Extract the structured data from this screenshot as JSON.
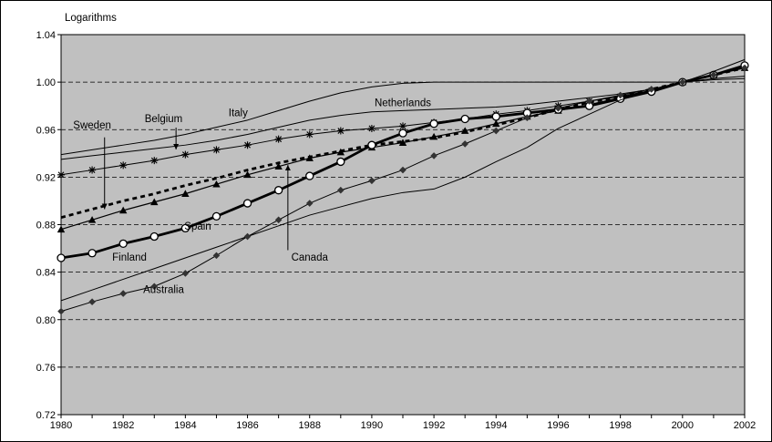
{
  "chart_data": {
    "type": "line",
    "ylabel": "Logarithms",
    "xlim": [
      1980,
      2002
    ],
    "ylim": [
      0.72,
      1.04
    ],
    "x_ticks": [
      "1980",
      "1982",
      "1984",
      "1986",
      "1988",
      "1990",
      "1992",
      "1994",
      "1996",
      "1998",
      "2000",
      "2002"
    ],
    "y_ticks": [
      "0.72",
      "0.76",
      "0.80",
      "0.84",
      "0.88",
      "0.92",
      "0.96",
      "1.00",
      "1.04"
    ],
    "grid": "horizontal-dashed",
    "plot_background": "#c0c0c0",
    "x": [
      1980,
      1981,
      1982,
      1983,
      1984,
      1985,
      1986,
      1987,
      1988,
      1989,
      1990,
      1991,
      1992,
      1993,
      1994,
      1995,
      1996,
      1997,
      1998,
      1999,
      2000,
      2001,
      2002
    ],
    "series": [
      {
        "name": "Italy",
        "style": "thin",
        "color": "#000000",
        "values": [
          0.939,
          0.943,
          0.947,
          0.951,
          0.956,
          0.962,
          0.968,
          0.976,
          0.984,
          0.991,
          0.996,
          0.999,
          1.0,
          1.0,
          1.0,
          1.0,
          1.0,
          1.0,
          1.0,
          1.0,
          1.0,
          1.002,
          1.003
        ]
      },
      {
        "name": "Netherlands",
        "style": "thin",
        "color": "#000000",
        "values": [
          0.935,
          0.938,
          0.941,
          0.944,
          0.947,
          0.951,
          0.956,
          0.962,
          0.968,
          0.972,
          0.975,
          0.976,
          0.977,
          0.978,
          0.979,
          0.981,
          0.984,
          0.987,
          0.99,
          0.994,
          1.0,
          1.003,
          1.005
        ]
      },
      {
        "name": "Belgium",
        "style": "asterisk",
        "color": "#000000",
        "values": [
          0.922,
          0.926,
          0.93,
          0.934,
          0.939,
          0.943,
          0.947,
          0.952,
          0.956,
          0.959,
          0.961,
          0.963,
          0.966,
          0.969,
          0.973,
          0.976,
          0.98,
          0.984,
          0.988,
          0.993,
          1.0,
          1.006,
          1.013
        ]
      },
      {
        "name": "Sweden",
        "style": "dashed",
        "color": "#000000",
        "values": [
          0.886,
          0.893,
          0.9,
          0.906,
          0.913,
          0.919,
          0.926,
          0.932,
          0.937,
          0.942,
          0.947,
          0.95,
          0.953,
          0.958,
          0.964,
          0.97,
          0.977,
          0.983,
          0.988,
          0.994,
          1.0,
          1.006,
          1.012
        ]
      },
      {
        "name": "Spain",
        "style": "triangle",
        "color": "#000000",
        "values": [
          0.876,
          0.884,
          0.892,
          0.899,
          0.906,
          0.914,
          0.922,
          0.929,
          0.936,
          0.941,
          0.945,
          0.949,
          0.954,
          0.959,
          0.965,
          0.971,
          0.976,
          0.981,
          0.987,
          0.993,
          1.0,
          1.006,
          1.012
        ]
      },
      {
        "name": "Canada",
        "style": "bold-circle",
        "color": "#000000",
        "values": [
          0.852,
          0.856,
          0.864,
          0.87,
          0.877,
          0.887,
          0.898,
          0.909,
          0.921,
          0.933,
          0.947,
          0.957,
          0.965,
          0.969,
          0.971,
          0.974,
          0.977,
          0.98,
          0.986,
          0.992,
          1.0,
          1.006,
          1.014
        ]
      },
      {
        "name": "Finland",
        "style": "thin",
        "color": "#000000",
        "values": [
          0.816,
          0.825,
          0.834,
          0.843,
          0.852,
          0.861,
          0.87,
          0.879,
          0.888,
          0.895,
          0.902,
          0.907,
          0.91,
          0.92,
          0.933,
          0.945,
          0.961,
          0.973,
          0.985,
          0.993,
          1.0,
          1.009,
          1.019
        ]
      },
      {
        "name": "Australia",
        "style": "diamond",
        "color": "#000000",
        "values": [
          0.807,
          0.815,
          0.822,
          0.828,
          0.839,
          0.854,
          0.87,
          0.884,
          0.898,
          0.909,
          0.917,
          0.926,
          0.938,
          0.948,
          0.959,
          0.97,
          0.978,
          0.984,
          0.989,
          0.994,
          1.0,
          1.006,
          1.012
        ]
      }
    ],
    "annotations": [
      {
        "text": "Italy",
        "x": 1985.7,
        "y": 0.9715
      },
      {
        "text": "Netherlands",
        "x": 1991.0,
        "y": 0.9797
      },
      {
        "text": "Belgium",
        "x": 1983.3,
        "y": 0.9663
      },
      {
        "text": "Sweden",
        "x": 1981.0,
        "y": 0.9608
      },
      {
        "text": "Spain",
        "x": 1984.4,
        "y": 0.8757
      },
      {
        "text": "Finland",
        "x": 1982.2,
        "y": 0.8497
      },
      {
        "text": "Canada",
        "x": 1988.0,
        "y": 0.8497
      },
      {
        "text": "Australia",
        "x": 1983.3,
        "y": 0.8224
      }
    ],
    "pointers": [
      {
        "from": [
          1983.7,
          0.9617
        ],
        "to": [
          1983.7,
          0.9433
        ]
      },
      {
        "from": [
          1981.4,
          0.9535
        ],
        "to": [
          1981.4,
          0.893
        ]
      },
      {
        "from": [
          1987.3,
          0.8585
        ],
        "to": [
          1987.3,
          0.9303
        ]
      }
    ]
  }
}
